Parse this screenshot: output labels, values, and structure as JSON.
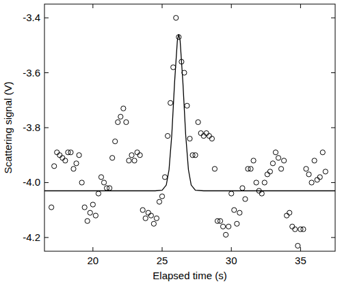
{
  "chart_data": {
    "type": "scatter",
    "x_label": "Elapsed time (s)",
    "y_label": "Scattering signal (V)",
    "xlim": [
      16.5,
      37.5
    ],
    "ylim": [
      -4.25,
      -3.35
    ],
    "xticks": [
      20,
      25,
      30,
      35
    ],
    "yticks": [
      -4.2,
      {
        "value": -4,
        "label": "-4.0"
      },
      -3.8,
      -3.6,
      -3.4
    ],
    "series": [
      {
        "type": "scatter",
        "marker": "circle",
        "color": "#000000",
        "x": [
          17.0,
          17.2,
          17.4,
          17.6,
          17.8,
          18.0,
          18.2,
          18.4,
          18.6,
          18.8,
          19.0,
          19.2,
          19.4,
          19.6,
          19.8,
          20.0,
          20.2,
          20.4,
          20.6,
          20.8,
          21.0,
          21.2,
          21.4,
          21.6,
          21.8,
          22.0,
          22.2,
          22.4,
          22.6,
          22.8,
          23.0,
          23.2,
          23.4,
          23.6,
          23.8,
          24.0,
          24.2,
          24.4,
          24.6,
          24.8,
          25.0,
          25.2,
          25.4,
          25.6,
          25.8,
          26.0,
          26.2,
          26.4,
          26.6,
          26.8,
          27.0,
          27.2,
          27.4,
          27.6,
          27.8,
          28.0,
          28.2,
          28.4,
          28.6,
          28.8,
          29.0,
          29.2,
          29.4,
          29.6,
          29.8,
          30.0,
          30.2,
          30.4,
          30.6,
          30.8,
          31.0,
          31.2,
          31.4,
          31.6,
          31.8,
          32.0,
          32.2,
          32.4,
          32.6,
          32.8,
          33.0,
          33.2,
          33.4,
          33.6,
          33.8,
          34.0,
          34.2,
          34.4,
          34.6,
          34.8,
          35.0,
          35.2,
          35.4,
          35.6,
          35.8,
          36.0,
          36.2,
          36.4,
          36.6,
          36.8
        ],
        "values": [
          -4.09,
          -3.94,
          -3.89,
          -3.9,
          -3.91,
          -3.92,
          -3.89,
          -3.89,
          -3.95,
          -3.93,
          -3.9,
          -4.0,
          -4.09,
          -4.14,
          -4.11,
          -4.08,
          -4.12,
          -4.04,
          -3.98,
          -4.0,
          -4.02,
          -4.02,
          -3.91,
          -3.85,
          -3.78,
          -3.76,
          -3.73,
          -3.78,
          -3.92,
          -3.9,
          -3.92,
          -3.89,
          -3.9,
          -4.1,
          -4.13,
          -4.11,
          -4.12,
          -4.15,
          -4.13,
          -4.07,
          -4.05,
          -3.98,
          -3.83,
          -3.71,
          -3.58,
          -3.4,
          -3.47,
          -3.56,
          -3.6,
          -3.72,
          -3.84,
          -3.9,
          -3.9,
          -3.78,
          -3.82,
          -3.83,
          -3.82,
          -3.83,
          -3.84,
          -3.95,
          -4.14,
          -4.14,
          -4.16,
          -4.19,
          -4.16,
          -4.04,
          -4.1,
          -4.15,
          -4.11,
          -4.02,
          -4.06,
          -3.95,
          -3.95,
          -3.92,
          -4.0,
          -4.03,
          -4.04,
          -4.0,
          -3.97,
          -3.96,
          -3.93,
          -3.89,
          -3.91,
          -3.95,
          -3.92,
          -4.12,
          -4.11,
          -4.16,
          -4.17,
          -4.23,
          -4.17,
          -4.17,
          -3.95,
          -3.97,
          -4.0,
          -3.92,
          -3.99,
          -3.98,
          -3.89,
          -3.96
        ]
      },
      {
        "type": "line",
        "line_style": "solid",
        "color": "#000000",
        "x": [
          16.5,
          24.5,
          25.0,
          25.3,
          25.5,
          25.7,
          25.9,
          26.1,
          26.2,
          26.3,
          26.5,
          26.7,
          26.9,
          27.1,
          27.4,
          28.0,
          37.5
        ],
        "values": [
          -4.03,
          -4.03,
          -4.028,
          -4.009,
          -3.953,
          -3.825,
          -3.635,
          -3.483,
          -3.46,
          -3.483,
          -3.635,
          -3.825,
          -3.953,
          -4.009,
          -4.028,
          -4.03,
          -4.03
        ]
      }
    ]
  }
}
